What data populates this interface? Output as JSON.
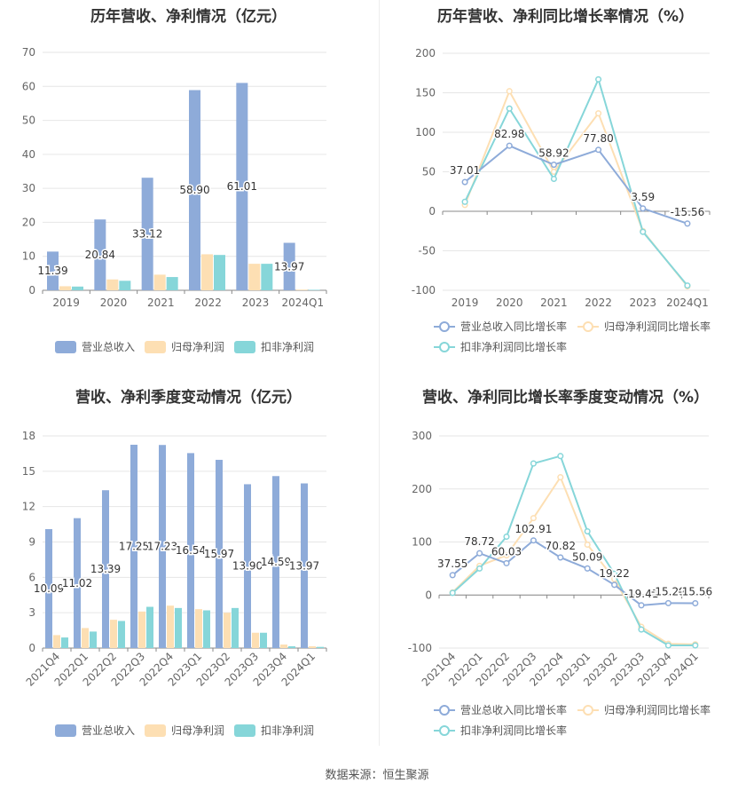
{
  "source_text": "数据来源：恒生聚源",
  "chart_data": [
    {
      "id": "annual-bar",
      "type": "bar",
      "title": "历年营收、净利情况（亿元）",
      "categories": [
        "2019",
        "2020",
        "2021",
        "2022",
        "2023",
        "2024Q1"
      ],
      "ylim": [
        0,
        70
      ],
      "yticks": [
        0,
        10,
        20,
        30,
        40,
        50,
        60,
        70
      ],
      "series": [
        {
          "name": "营业总收入",
          "color": "#8eabd9",
          "values": [
            11.39,
            20.84,
            33.12,
            58.9,
            61.01,
            13.97
          ],
          "labels": [
            "11.39",
            "20.84",
            "33.12",
            "58.90",
            "61.01",
            "13.97"
          ]
        },
        {
          "name": "归母净利润",
          "color": "#fddfb3",
          "values": [
            1.2,
            3.2,
            4.6,
            10.6,
            7.8,
            0.2
          ]
        },
        {
          "name": "扣非净利润",
          "color": "#86d6d9",
          "values": [
            1.1,
            2.8,
            3.9,
            10.4,
            7.8,
            0.15
          ]
        }
      ]
    },
    {
      "id": "annual-line",
      "type": "line",
      "title": "历年营收、净利同比增长率情况（%）",
      "categories": [
        "2019",
        "2020",
        "2021",
        "2022",
        "2023",
        "2024Q1"
      ],
      "ylim": [
        -100,
        200
      ],
      "yticks": [
        -100,
        -50,
        0,
        50,
        100,
        150,
        200
      ],
      "series": [
        {
          "name": "营业总收入同比增长率",
          "color": "#8eabd9",
          "values": [
            37.01,
            82.98,
            58.92,
            77.8,
            3.59,
            -15.56
          ],
          "labels": [
            "37.01",
            "82.98",
            "58.92",
            "77.80",
            "3.59",
            "-15.56"
          ]
        },
        {
          "name": "归母净利润同比增长率",
          "color": "#fddfb3",
          "values": [
            8,
            152,
            50,
            124,
            -25,
            -95
          ]
        },
        {
          "name": "扣非净利润同比增长率",
          "color": "#86d6d9",
          "values": [
            12,
            130,
            41,
            167,
            -26,
            -94
          ]
        }
      ]
    },
    {
      "id": "quarter-bar",
      "type": "bar",
      "title": "营收、净利季度变动情况（亿元）",
      "categories": [
        "2021Q4",
        "2022Q1",
        "2022Q2",
        "2022Q3",
        "2022Q4",
        "2023Q1",
        "2023Q2",
        "2023Q3",
        "2023Q4",
        "2024Q1"
      ],
      "ylim": [
        0,
        18
      ],
      "yticks": [
        0,
        3,
        6,
        9,
        12,
        15,
        18
      ],
      "series": [
        {
          "name": "营业总收入",
          "color": "#8eabd9",
          "values": [
            10.09,
            11.02,
            13.39,
            17.25,
            17.23,
            16.54,
            15.97,
            13.9,
            14.59,
            13.97
          ],
          "labels": [
            "10.09",
            "11.02",
            "13.39",
            "17.25",
            "17.23",
            "16.54",
            "15.97",
            "13.90",
            "14.59",
            "13.97"
          ]
        },
        {
          "name": "归母净利润",
          "color": "#fddfb3",
          "values": [
            1.1,
            1.7,
            2.4,
            3.1,
            3.6,
            3.3,
            3.0,
            1.3,
            0.3,
            0.15
          ]
        },
        {
          "name": "扣非净利润",
          "color": "#86d6d9",
          "values": [
            0.9,
            1.4,
            2.3,
            3.5,
            3.4,
            3.2,
            3.4,
            1.3,
            0.15,
            0.1
          ]
        }
      ]
    },
    {
      "id": "quarter-line",
      "type": "line",
      "title": "营收、净利同比增长率季度变动情况（%）",
      "categories": [
        "2021Q4",
        "2022Q1",
        "2022Q2",
        "2022Q3",
        "2022Q4",
        "2023Q1",
        "2023Q2",
        "2023Q3",
        "2023Q4",
        "2024Q1"
      ],
      "ylim": [
        -100,
        300
      ],
      "yticks": [
        -100,
        0,
        100,
        200,
        300
      ],
      "series": [
        {
          "name": "营业总收入同比增长率",
          "color": "#8eabd9",
          "values": [
            37.55,
            78.72,
            60.03,
            102.91,
            70.82,
            50.09,
            19.22,
            -19.41,
            -15.29,
            -15.56
          ],
          "labels": [
            "37.55",
            "78.72",
            "60.03",
            "102.91",
            "70.82",
            "50.09",
            "19.22",
            "-19.41",
            "-15.29",
            "-15.56"
          ]
        },
        {
          "name": "归母净利润同比增长率",
          "color": "#fddfb3",
          "values": [
            5,
            55,
            75,
            145,
            222,
            95,
            30,
            -60,
            -92,
            -93
          ]
        },
        {
          "name": "扣非净利润同比增长率",
          "color": "#86d6d9",
          "values": [
            4,
            50,
            110,
            248,
            262,
            120,
            40,
            -65,
            -95,
            -95
          ]
        }
      ]
    }
  ]
}
